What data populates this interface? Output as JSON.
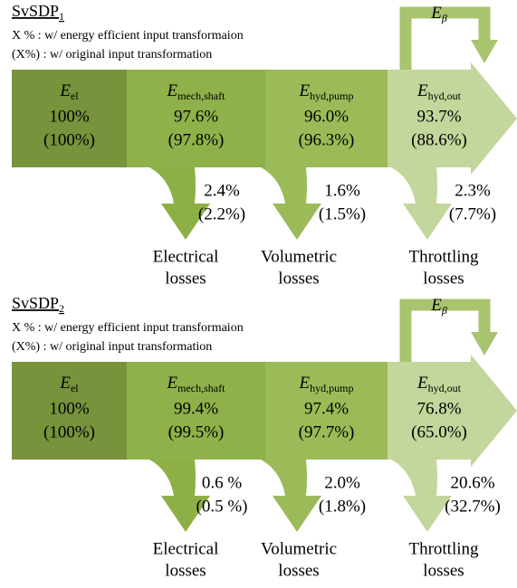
{
  "panels": [
    {
      "title": {
        "base": "SvSDP",
        "sub": "1"
      },
      "legend": [
        " X % : w/ energy efficient input transformaion",
        "(X%) : w/ original input transformation"
      ],
      "blocks": [
        {
          "symbol": "E",
          "sub": "el",
          "value": "100%",
          "original": "(100%)"
        },
        {
          "symbol": "E",
          "sub": "mech,shaft",
          "value": "97.6%",
          "original": "(97.8%)"
        },
        {
          "symbol": "E",
          "sub": "hyd,pump",
          "value": "96.0%",
          "original": "(96.3%)"
        },
        {
          "symbol": "E",
          "sub": "hyd,out",
          "value": "93.7%",
          "original": "(88.6%)"
        }
      ],
      "feedback": {
        "symbol": "E",
        "sub": "β"
      },
      "losses": [
        {
          "value": "2.4%",
          "original": "(2.2%)",
          "label": [
            "Electrical",
            "losses"
          ]
        },
        {
          "value": "1.6%",
          "original": "(1.5%)",
          "label": [
            "Volumetric",
            "losses"
          ]
        },
        {
          "value": "2.3%",
          "original": "(7.7%)",
          "label": [
            "Throttling",
            "losses"
          ]
        }
      ]
    },
    {
      "title": {
        "base": "SvSDP",
        "sub": "2"
      },
      "legend": [
        " X % : w/ energy efficient input transformaion",
        "(X%) : w/ original input transformation"
      ],
      "blocks": [
        {
          "symbol": "E",
          "sub": "el",
          "value": "100%",
          "original": "(100%)"
        },
        {
          "symbol": "E",
          "sub": "mech,shaft",
          "value": "99.4%",
          "original": "(99.5%)"
        },
        {
          "symbol": "E",
          "sub": "hyd,pump",
          "value": "97.4%",
          "original": "(97.7%)"
        },
        {
          "symbol": "E",
          "sub": "hyd,out",
          "value": "76.8%",
          "original": "(65.0%)"
        }
      ],
      "feedback": {
        "symbol": "E",
        "sub": "β"
      },
      "losses": [
        {
          "value": "0.6 %",
          "original": "(0.5 %)",
          "label": [
            "Electrical",
            "losses"
          ]
        },
        {
          "value": "2.0%",
          "original": "(1.8%)",
          "label": [
            "Volumetric",
            "losses"
          ]
        },
        {
          "value": "20.6%",
          "original": "(32.7%)",
          "label": [
            "Throttling",
            "losses"
          ]
        }
      ]
    }
  ]
}
